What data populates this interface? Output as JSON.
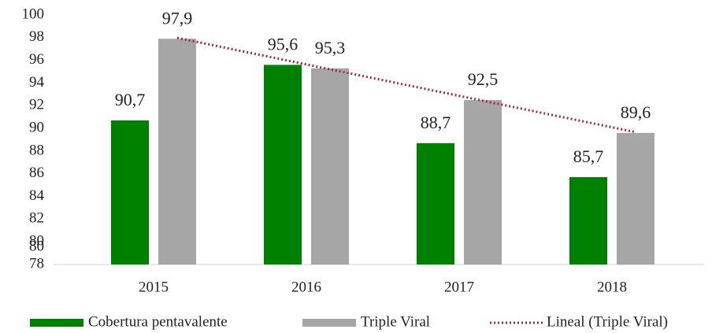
{
  "chart_data": {
    "type": "bar",
    "categories": [
      "2015",
      "2016",
      "2017",
      "2018"
    ],
    "series": [
      {
        "name": "Cobertura pentavalente",
        "color": "#008000",
        "values": [
          90.7,
          95.6,
          88.7,
          85.7
        ]
      },
      {
        "name": "Triple Viral",
        "color": "#a6a6a6",
        "values": [
          97.9,
          95.3,
          92.5,
          89.6
        ]
      }
    ],
    "value_labels": [
      [
        "90,7",
        "95,6",
        "88,7",
        "85,7"
      ],
      [
        "97,9",
        "95,3",
        "92,5",
        "89,6"
      ]
    ],
    "trendline": {
      "name": "Lineal (Triple Viral)",
      "series": 1,
      "color": "#a0283c"
    },
    "ylim": [
      78,
      100
    ],
    "yticks": [
      78,
      {
        "value": 79.5,
        "label": "80"
      },
      80,
      82,
      84,
      86,
      88,
      90,
      92,
      94,
      96,
      98,
      100
    ],
    "legend": "bottom"
  }
}
